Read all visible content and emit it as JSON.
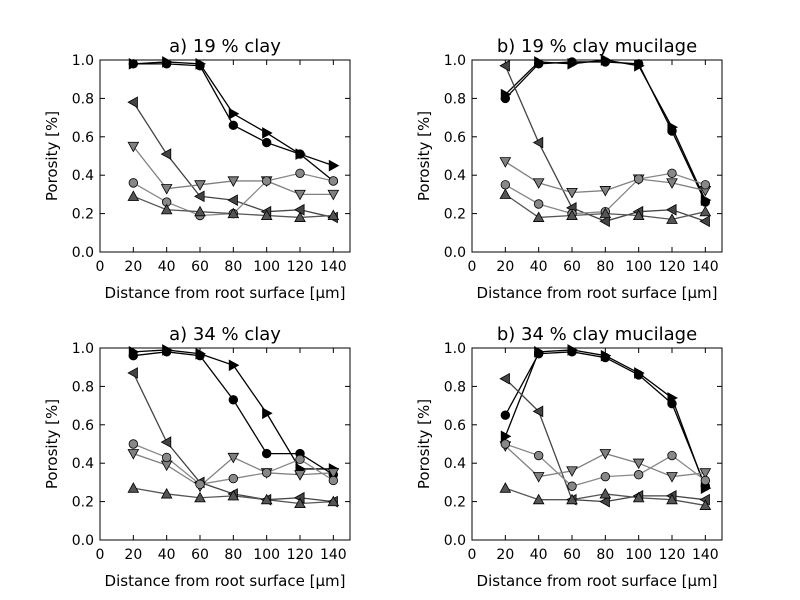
{
  "figure": {
    "background": "#ffffff"
  },
  "chart_data": [
    {
      "type": "line",
      "title": "a) 19 % clay",
      "xlabel": "Distance from root surface [μm]",
      "ylabel": "Porosity [%]",
      "xlim": [
        0,
        150
      ],
      "ylim": [
        0.0,
        1.0
      ],
      "xticks": [
        "0",
        "20",
        "40",
        "60",
        "80",
        "100",
        "120",
        "140"
      ],
      "yticks": [
        "0.0",
        "0.2",
        "0.4",
        "0.6",
        "0.8",
        "1.0"
      ],
      "grid": false,
      "x": [
        20,
        40,
        60,
        80,
        100,
        120,
        140
      ],
      "series": [
        {
          "marker": "circle",
          "color": "#000000",
          "values": [
            0.98,
            0.98,
            0.97,
            0.66,
            0.57,
            0.51,
            0.37
          ]
        },
        {
          "marker": "triangle-right",
          "color": "#000000",
          "values": [
            0.98,
            0.99,
            0.98,
            0.72,
            0.62,
            0.51,
            0.45
          ]
        },
        {
          "marker": "triangle-left",
          "color": "#444444",
          "values": [
            0.78,
            0.51,
            0.29,
            0.27,
            0.21,
            0.22,
            0.18
          ]
        },
        {
          "marker": "triangle-down",
          "color": "#808080",
          "values": [
            0.55,
            0.33,
            0.35,
            0.37,
            0.37,
            0.3,
            0.3
          ]
        },
        {
          "marker": "circle",
          "color": "#888888",
          "values": [
            0.36,
            0.26,
            0.19,
            0.2,
            0.37,
            0.41,
            0.37
          ]
        },
        {
          "marker": "triangle-up",
          "color": "#555555",
          "values": [
            0.29,
            0.22,
            0.21,
            0.2,
            0.19,
            0.18,
            0.19
          ]
        }
      ]
    },
    {
      "type": "line",
      "title": "b) 19 % clay mucilage",
      "xlabel": "Distance from root surface [μm]",
      "ylabel": "Porosity [%]",
      "xlim": [
        0,
        150
      ],
      "ylim": [
        0.0,
        1.0
      ],
      "xticks": [
        "0",
        "20",
        "40",
        "60",
        "80",
        "100",
        "120",
        "140"
      ],
      "yticks": [
        "0.0",
        "0.2",
        "0.4",
        "0.6",
        "0.8",
        "1.0"
      ],
      "grid": false,
      "x": [
        20,
        40,
        60,
        80,
        100,
        120,
        140
      ],
      "series": [
        {
          "marker": "circle",
          "color": "#000000",
          "values": [
            0.8,
            0.98,
            0.99,
            0.99,
            0.98,
            0.63,
            0.26
          ]
        },
        {
          "marker": "triangle-right",
          "color": "#000000",
          "values": [
            0.82,
            0.99,
            0.98,
            1.0,
            0.97,
            0.65,
            0.27
          ]
        },
        {
          "marker": "triangle-left",
          "color": "#444444",
          "values": [
            0.97,
            0.57,
            0.23,
            0.16,
            0.21,
            0.22,
            0.16
          ]
        },
        {
          "marker": "triangle-down",
          "color": "#808080",
          "values": [
            0.47,
            0.36,
            0.31,
            0.32,
            0.38,
            0.36,
            0.32
          ]
        },
        {
          "marker": "circle",
          "color": "#888888",
          "values": [
            0.35,
            0.25,
            0.2,
            0.21,
            0.38,
            0.41,
            0.35
          ]
        },
        {
          "marker": "triangle-up",
          "color": "#555555",
          "values": [
            0.3,
            0.18,
            0.19,
            0.2,
            0.19,
            0.17,
            0.21
          ]
        }
      ]
    },
    {
      "type": "line",
      "title": "a) 34 % clay",
      "xlabel": "Distance from root surface [μm]",
      "ylabel": "Porosity [%]",
      "xlim": [
        0,
        150
      ],
      "ylim": [
        0.0,
        1.0
      ],
      "xticks": [
        "0",
        "20",
        "40",
        "60",
        "80",
        "100",
        "120",
        "140"
      ],
      "yticks": [
        "0.0",
        "0.2",
        "0.4",
        "0.6",
        "0.8",
        "1.0"
      ],
      "grid": false,
      "x": [
        20,
        40,
        60,
        80,
        100,
        120,
        140
      ],
      "series": [
        {
          "marker": "circle",
          "color": "#000000",
          "values": [
            0.96,
            0.98,
            0.96,
            0.73,
            0.45,
            0.45,
            0.34
          ]
        },
        {
          "marker": "triangle-right",
          "color": "#000000",
          "values": [
            0.98,
            0.99,
            0.97,
            0.91,
            0.66,
            0.37,
            0.37
          ]
        },
        {
          "marker": "triangle-left",
          "color": "#444444",
          "values": [
            0.87,
            0.51,
            0.3,
            0.24,
            0.21,
            0.22,
            0.2
          ]
        },
        {
          "marker": "triangle-down",
          "color": "#808080",
          "values": [
            0.45,
            0.39,
            0.28,
            0.43,
            0.35,
            0.34,
            0.35
          ]
        },
        {
          "marker": "circle",
          "color": "#888888",
          "values": [
            0.5,
            0.43,
            0.29,
            0.32,
            0.35,
            0.42,
            0.31
          ]
        },
        {
          "marker": "triangle-up",
          "color": "#555555",
          "values": [
            0.27,
            0.24,
            0.22,
            0.23,
            0.21,
            0.19,
            0.2
          ]
        }
      ]
    },
    {
      "type": "line",
      "title": "b) 34 % clay mucilage",
      "xlabel": "Distance from root surface [μm]",
      "ylabel": "Porosity [%]",
      "xlim": [
        0,
        150
      ],
      "ylim": [
        0.0,
        1.0
      ],
      "xticks": [
        "0",
        "20",
        "40",
        "60",
        "80",
        "100",
        "120",
        "140"
      ],
      "yticks": [
        "0.0",
        "0.2",
        "0.4",
        "0.6",
        "0.8",
        "1.0"
      ],
      "grid": false,
      "x": [
        20,
        40,
        60,
        80,
        100,
        120,
        140
      ],
      "series": [
        {
          "marker": "circle",
          "color": "#000000",
          "values": [
            0.65,
            0.97,
            0.98,
            0.95,
            0.86,
            0.71,
            0.28
          ]
        },
        {
          "marker": "triangle-right",
          "color": "#000000",
          "values": [
            0.54,
            0.98,
            0.99,
            0.96,
            0.87,
            0.74,
            0.27
          ]
        },
        {
          "marker": "triangle-left",
          "color": "#444444",
          "values": [
            0.84,
            0.67,
            0.21,
            0.2,
            0.23,
            0.23,
            0.21
          ]
        },
        {
          "marker": "triangle-down",
          "color": "#808080",
          "values": [
            0.49,
            0.33,
            0.36,
            0.45,
            0.4,
            0.33,
            0.35
          ]
        },
        {
          "marker": "circle",
          "color": "#888888",
          "values": [
            0.5,
            0.44,
            0.28,
            0.33,
            0.34,
            0.44,
            0.31
          ]
        },
        {
          "marker": "triangle-up",
          "color": "#555555",
          "values": [
            0.27,
            0.21,
            0.21,
            0.24,
            0.22,
            0.21,
            0.18
          ]
        }
      ]
    }
  ]
}
